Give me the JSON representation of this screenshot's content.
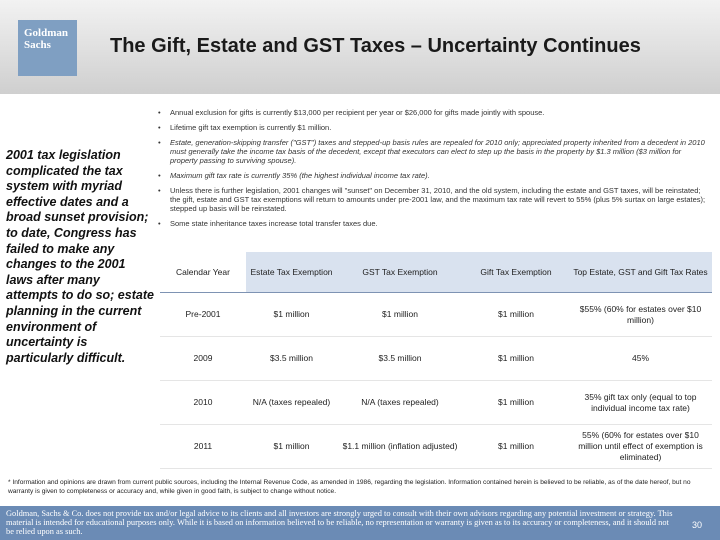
{
  "logo": {
    "line1": "Goldman",
    "line2": "Sachs"
  },
  "title": "The Gift, Estate and GST Taxes – Uncertainty Continues",
  "bullets": [
    {
      "text": "Annual exclusion for gifts is currently $13,000 per recipient per year or $26,000 for gifts made jointly with spouse."
    },
    {
      "text": "Lifetime gift tax exemption is currently $1 million."
    },
    {
      "text": "Estate, generation-skipping transfer (\"GST\") taxes and stepped-up basis rules are repealed for 2010 only; appreciated property inherited from a decedent in 2010 must generally take the income tax basis of the decedent, except that executors can elect to step up the basis in the property by $1.3 million ($3 million for property passing to surviving spouse)."
    },
    {
      "text": "Maximum gift tax rate is currently 35% (the highest individual income tax rate)."
    },
    {
      "text": "Unless there is further legislation, 2001 changes will \"sunset\" on December 31, 2010, and the old system, including the estate and GST taxes, will be reinstated; the gift, estate and GST tax exemptions will return to amounts under pre-2001 law, and the maximum tax rate will revert to 55% (plus 5% surtax on large estates); stepped up basis will be reinstated."
    },
    {
      "text": "Some state inheritance taxes increase total transfer taxes due."
    }
  ],
  "sidebar_text": "2001 tax legislation complicated the tax system with myriad effective dates and a broad sunset provision; to date, Congress has failed to make any changes to the 2001 laws after many attempts to do so; estate planning in the current environment of uncertainty is particularly difficult.",
  "table": {
    "headers": [
      "Calendar Year",
      "Estate Tax Exemption",
      "GST Tax Exemption",
      "Gift Tax Exemption",
      "Top Estate, GST and Gift Tax Rates"
    ],
    "rows": [
      {
        "year": "Pre-2001",
        "estate": "$1 million",
        "gst": "$1 million",
        "gift": "$1 million",
        "rate": "$55% (60% for estates over $10 million)"
      },
      {
        "year": "2009",
        "estate": "$3.5 million",
        "gst": "$3.5 million",
        "gift": "$1 million",
        "rate": "45%"
      },
      {
        "year": "2010",
        "estate": "N/A (taxes repealed)",
        "gst": "N/A (taxes repealed)",
        "gift": "$1 million",
        "rate": "35% gift tax only (equal to top individual income tax rate)"
      },
      {
        "year": "2011",
        "estate": "$1 million",
        "gst": "$1.1 million (inflation adjusted)",
        "gift": "$1 million",
        "rate": "55% (60% for estates over $10 million until effect of exemption is eliminated)"
      }
    ]
  },
  "disclaimer": "* Information and opinions are drawn from current public sources, including the Internal Revenue Code, as amended in 1986, regarding the legislation. Information contained herein is believed to be reliable, as of the date hereof, but no warranty is given to completeness or accuracy and, while given in good faith, is subject to change without notice.",
  "footer_text": "Goldman, Sachs & Co. does not provide tax and/or legal advice to its clients and all investors are strongly urged to consult with their own advisors regarding any potential investment or strategy. This material is intended for educational purposes only. While it is based on information believed to be reliable, no representation or warranty is given as to its accuracy or completeness, and it should not be relied upon as such.",
  "page_number": "30"
}
